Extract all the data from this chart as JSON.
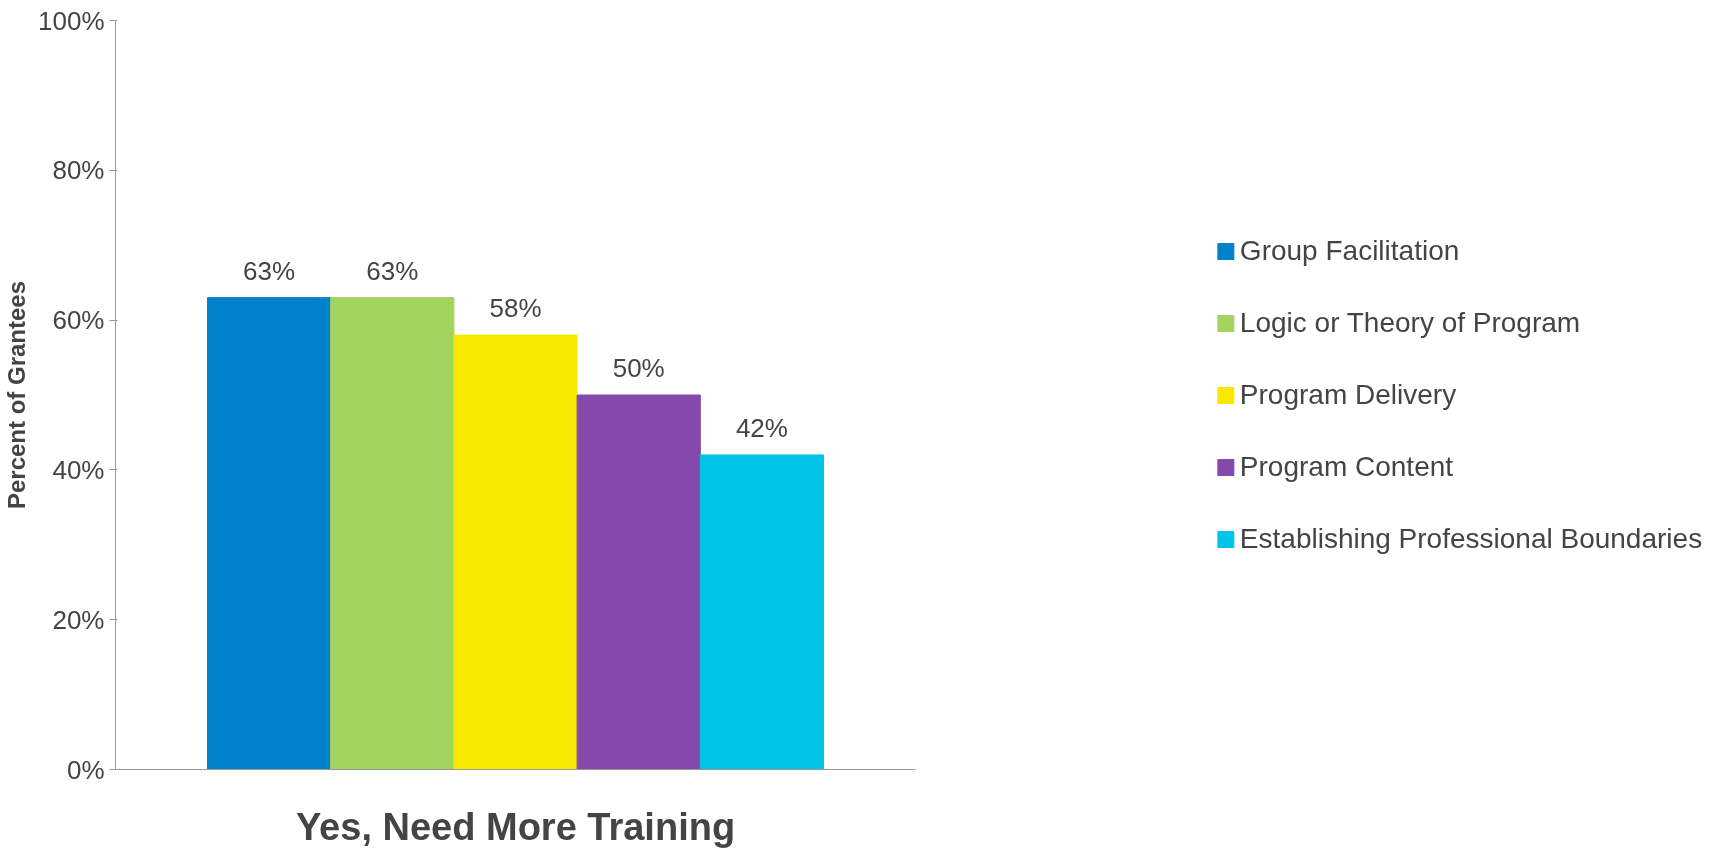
{
  "chart_data": {
    "type": "bar",
    "categories": [
      "Yes, Need More Training"
    ],
    "ylabel": "Percent of Grantees",
    "ylim": [
      0,
      100
    ],
    "yticks": [
      {
        "value": 0,
        "label": "0%"
      },
      {
        "value": 20,
        "label": "20%"
      },
      {
        "value": 40,
        "label": "40%"
      },
      {
        "value": 60,
        "label": "60%"
      },
      {
        "value": 80,
        "label": "80%"
      },
      {
        "value": 100,
        "label": "100%"
      }
    ],
    "series": [
      {
        "name": "Group Facilitation",
        "color": "#0082ca",
        "values": [
          63
        ],
        "value_labels": [
          "63%"
        ]
      },
      {
        "name": "Logic or Theory of Program",
        "color": "#a2d45e",
        "values": [
          63
        ],
        "value_labels": [
          "63%"
        ]
      },
      {
        "name": "Program Delivery",
        "color": "#f7ea00",
        "values": [
          58
        ],
        "value_labels": [
          "58%"
        ]
      },
      {
        "name": "Program Content",
        "color": "#8549ad",
        "values": [
          50
        ],
        "value_labels": [
          "50%"
        ]
      },
      {
        "name": "Establishing Professional Boundaries",
        "color": "#00c5e6",
        "values": [
          42
        ],
        "value_labels": [
          "42%"
        ]
      }
    ],
    "legend": "right",
    "grid": false
  }
}
